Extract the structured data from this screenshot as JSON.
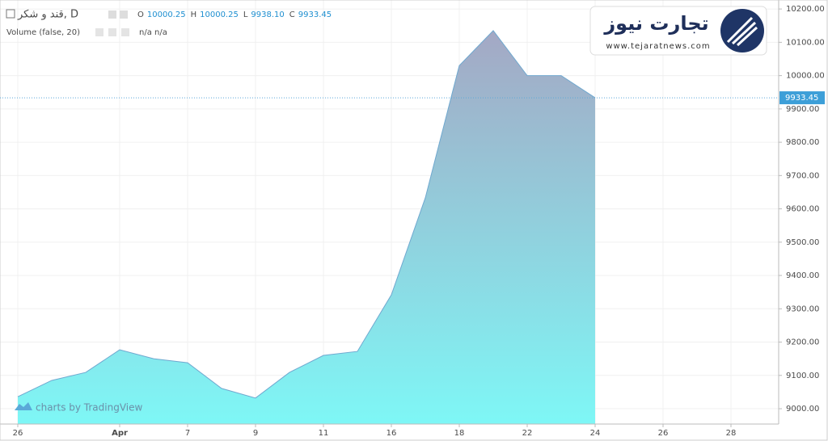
{
  "chart_data": {
    "type": "area",
    "header": {
      "symbol": "قند و شکر, D",
      "ohlc": [
        [
          "O",
          "10000.25"
        ],
        [
          "H",
          "10000.25"
        ],
        [
          "L",
          "9938.10"
        ],
        [
          "C",
          "9933.45"
        ]
      ],
      "study": "Volume (false, 20)",
      "study_values": "n/a n/a"
    },
    "watermark": "charts by TradingView",
    "logo": {
      "title": "تجارت نیوز",
      "url": "www.tejaratnews.com"
    },
    "categories": [
      "26",
      null,
      null,
      "Apr",
      null,
      "7",
      null,
      "9",
      null,
      "11",
      null,
      "16",
      null,
      "18",
      null,
      "22",
      null,
      "24",
      null,
      "26",
      null,
      "28"
    ],
    "values": [
      9036,
      9085,
      9109,
      9177,
      9150,
      9138,
      9061,
      9032,
      9109,
      9160,
      9172,
      9342,
      9633,
      10030,
      10135,
      10000,
      10000,
      9933.45,
      null,
      null,
      null,
      null
    ],
    "last_value_label": "9933.45",
    "line_color": "#6fa8cf",
    "fill_top": "#a4a8c4",
    "fill_bottom": "#7ef7f6",
    "ylim": [
      8954,
      10227
    ],
    "yticks": [
      {
        "value": 9000,
        "label": "9000.00"
      },
      {
        "value": 9100,
        "label": "9100.00"
      },
      {
        "value": 9200,
        "label": "9200.00"
      },
      {
        "value": 9300,
        "label": "9300.00"
      },
      {
        "value": 9400,
        "label": "9400.00"
      },
      {
        "value": 9500,
        "label": "9500.00"
      },
      {
        "value": 9600,
        "label": "9600.00"
      },
      {
        "value": 9700,
        "label": "9700.00"
      },
      {
        "value": 9800,
        "label": "9800.00"
      },
      {
        "value": 9900,
        "label": "9900.00"
      },
      {
        "value": 10000,
        "label": "10000.00"
      },
      {
        "value": 10100,
        "label": "10100.00"
      },
      {
        "value": 10200,
        "label": "10200.00"
      }
    ],
    "grid": true
  }
}
